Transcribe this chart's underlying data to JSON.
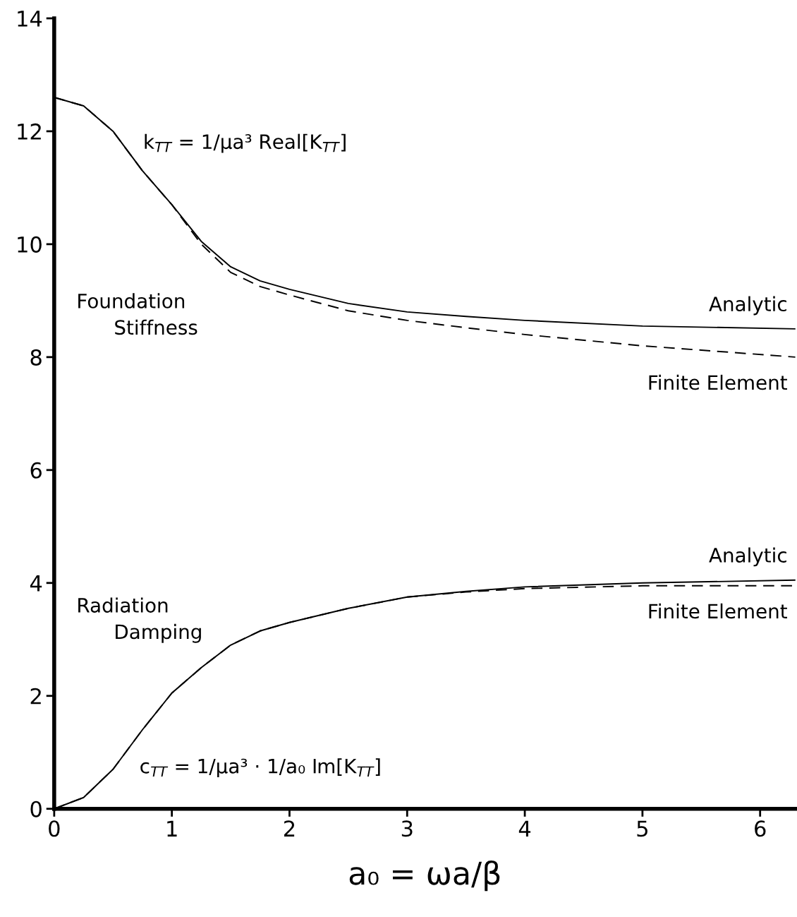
{
  "chart_data": {
    "type": "line",
    "xlabel": "a₀ = ωa/β",
    "xlim": [
      0,
      6.3
    ],
    "ylim": [
      0,
      14
    ],
    "xticks": [
      0,
      1,
      2,
      3,
      4,
      5,
      6
    ],
    "yticks": [
      0,
      2,
      4,
      6,
      8,
      10,
      12,
      14
    ],
    "grid": false,
    "legend": false,
    "marker": "none",
    "series": [
      {
        "name": "Analytic",
        "color": "#000000",
        "line_style": "solid",
        "x": [
          0,
          0.25,
          0.5,
          0.75,
          1.0,
          1.25,
          1.5,
          1.75,
          2,
          2.5,
          3,
          3.5,
          4,
          5,
          6.3
        ],
        "values": [
          12.6,
          12.45,
          12.0,
          11.3,
          10.7,
          10.05,
          9.6,
          9.35,
          9.2,
          8.95,
          8.8,
          8.72,
          8.65,
          8.55,
          8.5
        ]
      },
      {
        "name": "Finite Element",
        "color": "#000000",
        "line_style": "dashed",
        "x": [
          0,
          0.25,
          0.5,
          0.75,
          1.0,
          1.25,
          1.5,
          1.75,
          2,
          2.5,
          3,
          3.5,
          4,
          5,
          6.3
        ],
        "values": [
          12.6,
          12.45,
          12.0,
          11.3,
          10.7,
          10.0,
          9.5,
          9.25,
          9.1,
          8.82,
          8.65,
          8.52,
          8.4,
          8.2,
          8.0
        ]
      },
      {
        "name": "Analytic",
        "color": "#000000",
        "line_style": "solid",
        "x": [
          0,
          0.25,
          0.5,
          0.75,
          1.0,
          1.25,
          1.5,
          1.75,
          2,
          2.5,
          3,
          3.5,
          4,
          5,
          6.3
        ],
        "values": [
          0,
          0.2,
          0.7,
          1.4,
          2.05,
          2.5,
          2.9,
          3.15,
          3.3,
          3.55,
          3.75,
          3.85,
          3.93,
          4.0,
          4.05
        ]
      },
      {
        "name": "Finite Element",
        "color": "#000000",
        "line_style": "dashed",
        "x": [
          0,
          0.25,
          0.5,
          0.75,
          1.0,
          1.25,
          1.5,
          1.75,
          2,
          2.5,
          3,
          3.5,
          4,
          5,
          6.3
        ],
        "values": [
          0,
          0.2,
          0.7,
          1.4,
          2.05,
          2.5,
          2.9,
          3.15,
          3.3,
          3.55,
          3.75,
          3.84,
          3.9,
          3.95,
          3.95
        ]
      }
    ],
    "annotations": [
      "k$_{TT}$ = 1/μa³ Real[K$_{TT}$]",
      "Foundation\n      Stiffness",
      "Radiation\n      Damping",
      "c$_{TT}$ = 1/μa³ · 1/a₀ Im[K$_{TT}$]"
    ]
  }
}
